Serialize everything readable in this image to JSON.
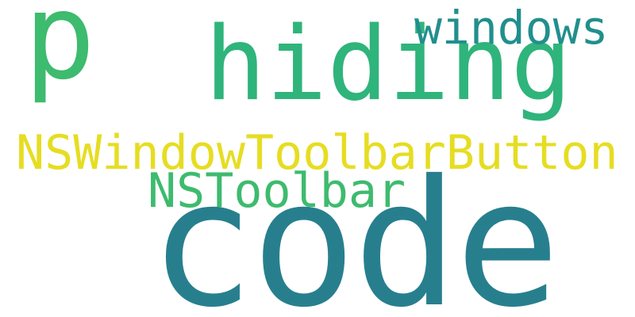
{
  "words": [
    {
      "id": "p",
      "text": "p",
      "color": "#3dbb6e"
    },
    {
      "id": "hiding",
      "text": "hiding",
      "color": "#2fb47c"
    },
    {
      "id": "windows",
      "text": "windows",
      "color": "#218f8d"
    },
    {
      "id": "nswtb",
      "text": "NSWindowToolbarButton",
      "color": "#e6dd22"
    },
    {
      "id": "nstoolbar",
      "text": "NSToolbar",
      "color": "#3dbb6e"
    },
    {
      "id": "code",
      "text": "code",
      "color": "#277f8e"
    }
  ]
}
